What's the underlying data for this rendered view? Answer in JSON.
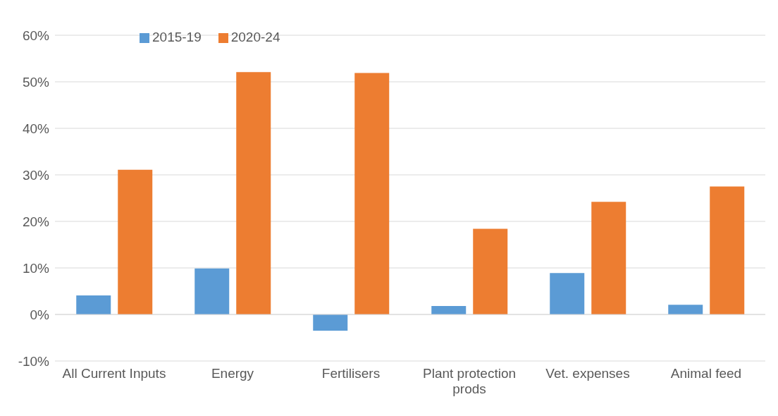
{
  "chart_data": {
    "type": "bar",
    "categories": [
      "All Current Inputs",
      "Energy",
      "Fertilisers",
      "Plant protection prods",
      "Vet. expenses",
      "Animal feed"
    ],
    "series": [
      {
        "name": "2015-19",
        "color": "#5b9bd5",
        "values": [
          4.1,
          9.9,
          -3.5,
          1.8,
          8.9,
          2.1
        ]
      },
      {
        "name": "2020-24",
        "color": "#ed7d31",
        "values": [
          31.1,
          52.1,
          51.9,
          18.4,
          24.2,
          27.5
        ]
      }
    ],
    "ylim": [
      -10,
      60
    ],
    "yticks": [
      {
        "value": -10,
        "label": "-10%"
      },
      {
        "value": 0,
        "label": "0%"
      },
      {
        "value": 10,
        "label": "10%"
      },
      {
        "value": 20,
        "label": "20%"
      },
      {
        "value": 30,
        "label": "30%"
      },
      {
        "value": 40,
        "label": "40%"
      },
      {
        "value": 50,
        "label": "50%"
      },
      {
        "value": 60,
        "label": "60%"
      }
    ],
    "grid": "y",
    "legend": "top left"
  }
}
